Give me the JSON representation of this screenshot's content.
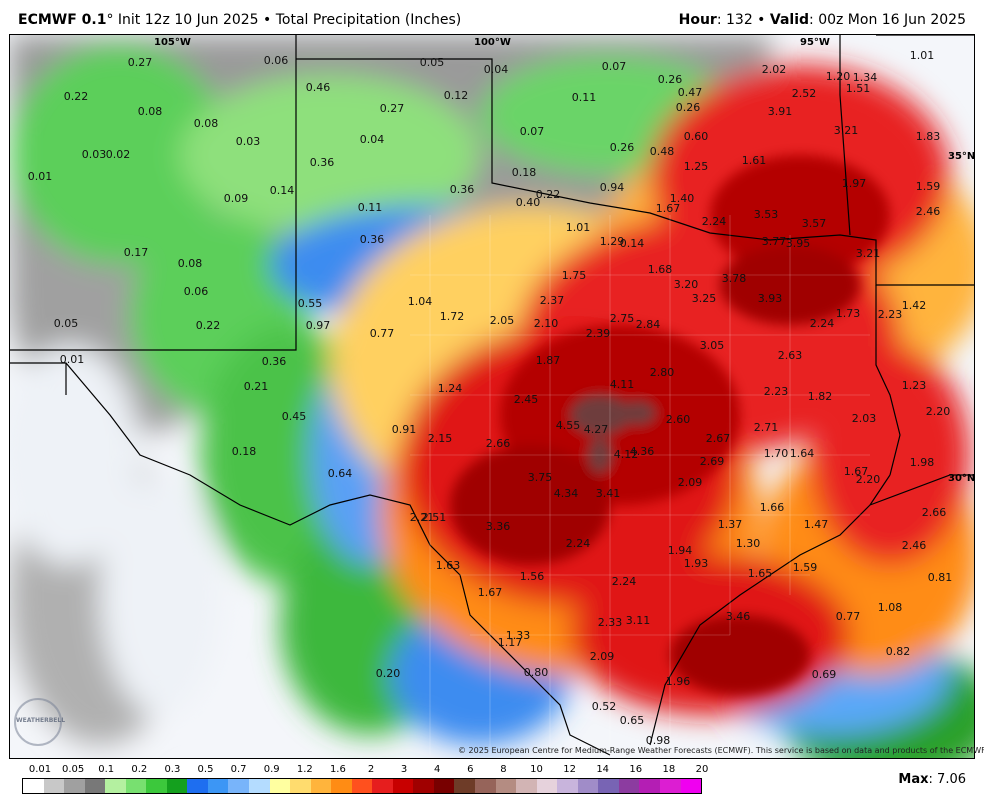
{
  "header": {
    "model": "ECMWF 0.1",
    "degree": "°",
    "init_text": " Init 12z 10 Jun 2025 • Total Precipitation (Inches)",
    "hour_label": "Hour",
    "hour_value": ": 132 • ",
    "valid_label": "Valid",
    "valid_value": ": 00z Mon 16 Jun 2025"
  },
  "map": {
    "longitude_labels": [
      "105°W",
      "100°W",
      "95°W"
    ],
    "latitude_labels": [
      "35°N",
      "30°N"
    ],
    "values": [
      "0.27",
      "0.06",
      "0.05",
      "0.04",
      "0.07",
      "0.26",
      "2.02",
      "1.20",
      "1.34",
      "1.01",
      "0.22",
      "0.46",
      "0.12",
      "0.11",
      "0.47",
      "2.52",
      "1.51",
      "0.08",
      "0.27",
      "0.26",
      "3.91",
      "0.08",
      "0.07",
      "0.03",
      "0.04",
      "0.60",
      "3.21",
      "1.83",
      "0.03",
      "0.02",
      "0.36",
      "0.26",
      "0.48",
      "1.25",
      "1.61",
      "0.01",
      "0.18",
      "1.97",
      "1.59",
      "0.14",
      "0.36",
      "0.94",
      "0.09",
      "0.22",
      "0.40",
      "1.40",
      "1.67",
      "0.11",
      "2.24",
      "3.53",
      "3.57",
      "2.46",
      "0.36",
      "1.01",
      "0.14",
      "1.29",
      "3.77",
      "3.95",
      "0.17",
      "3.21",
      "0.08",
      "1.68",
      "1.75",
      "3.78",
      "3.20",
      "0.06",
      "2.37",
      "3.25",
      "3.93",
      "1.42",
      "1.04",
      "1.73",
      "2.23",
      "0.55",
      "0.05",
      "0.97",
      "1.72",
      "0.22",
      "2.05",
      "2.10",
      "2.75",
      "2.84",
      "2.24",
      "0.77",
      "2.39",
      "0.01",
      "0.36",
      "3.05",
      "2.63",
      "1.87",
      "2.80",
      "4.11",
      "1.24",
      "1.23",
      "0.21",
      "2.45",
      "2.23",
      "1.82",
      "2.20",
      "0.45",
      "4.55",
      "4.27",
      "2.60",
      "2.71",
      "2.03",
      "0.91",
      "2.15",
      "2.66",
      "2.67",
      "0.18",
      "4.12",
      "4.36",
      "1.70",
      "1.64",
      "2.69",
      "1.98",
      "1.67",
      "0.64",
      "3.75",
      "2.09",
      "2.20",
      "4.34",
      "3.41",
      "1.66",
      "2.21",
      "2.51",
      "1.37",
      "1.47",
      "2.66",
      "3.36",
      "1.30",
      "2.24",
      "2.46",
      "1.94",
      "1.93",
      "1.65",
      "1.59",
      "1.63",
      "1.56",
      "0.81",
      "1.67",
      "2.24",
      "1.08",
      "3.46",
      "0.77",
      "2.33",
      "3.11",
      "1.33",
      "1.17",
      "0.82",
      "2.09",
      "0.20",
      "0.80",
      "0.69",
      "1.96",
      "0.52",
      "0.65",
      "0.98"
    ]
  },
  "credit": "© 2025 European Centre for Medium-Range Weather Forecasts (ECMWF). This service is based on data and products of the ECMWF.",
  "logo": "WEATHERBELL",
  "legend": {
    "ticks": [
      "0.01",
      "0.05",
      "0.1",
      "0.2",
      "0.3",
      "0.5",
      "0.7",
      "0.9",
      "1.2",
      "1.6",
      "2",
      "3",
      "4",
      "6",
      "8",
      "10",
      "12",
      "14",
      "16",
      "18",
      "20"
    ],
    "colors": [
      "#ffffff",
      "#c8c8c8",
      "#a0a0a0",
      "#787878",
      "#b4f0a0",
      "#78e070",
      "#3cc83c",
      "#14a01e",
      "#1e6ef0",
      "#3c96f5",
      "#78b4fa",
      "#b4dcff",
      "#ffffa0",
      "#ffdc6e",
      "#ffb43c",
      "#ff8c14",
      "#ff501e",
      "#e61e1e",
      "#c80000",
      "#a00000",
      "#780000",
      "#6e3c28",
      "#96645a",
      "#b48c82",
      "#d2b4b4",
      "#e6d2dc",
      "#c8b4dc",
      "#a08cc8",
      "#7864b4",
      "#8c3ca0",
      "#b41eb4",
      "#dc1ed2",
      "#f000f0"
    ]
  },
  "max": {
    "label": "Max",
    "value": ": 7.06"
  }
}
